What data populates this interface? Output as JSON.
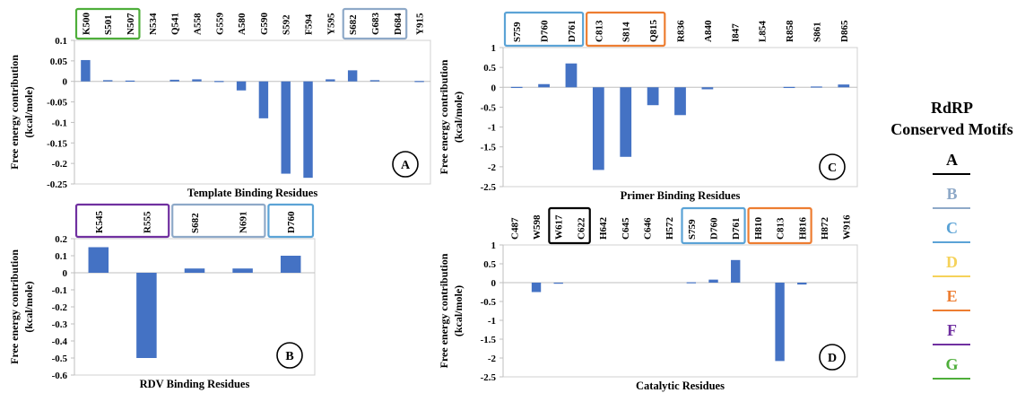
{
  "legend": {
    "title_line1": "RdRP",
    "title_line2": "Conserved Motifs",
    "motifs": [
      {
        "letter": "A",
        "color": "#000000"
      },
      {
        "letter": "B",
        "color": "#8EA9C8"
      },
      {
        "letter": "C",
        "color": "#5BA3D6"
      },
      {
        "letter": "D",
        "color": "#F5D25A"
      },
      {
        "letter": "E",
        "color": "#ED7D31"
      },
      {
        "letter": "F",
        "color": "#7030A0"
      },
      {
        "letter": "G",
        "color": "#4EAE3A"
      }
    ]
  },
  "chart_data": [
    {
      "type": "bar",
      "panel_label": "A",
      "xlabel": "Template Binding Residues",
      "ylabel": "Free energy contribution (kcal/mole)",
      "ylim": [
        -0.25,
        0.1
      ],
      "yticks": [
        "0.1",
        "0.05",
        "0",
        "-0.05",
        "-0.1",
        "-0.15",
        "-0.2",
        "-0.25"
      ],
      "bar_color": "#4472C4",
      "categories": [
        "K500",
        "S501",
        "N507",
        "N534",
        "Q541",
        "A558",
        "G559",
        "A580",
        "G590",
        "S592",
        "F594",
        "Y595",
        "S682",
        "G683",
        "D684",
        "Y915"
      ],
      "values": [
        0.052,
        0.003,
        0.002,
        0.0,
        0.004,
        0.005,
        0.001,
        -0.022,
        -0.09,
        -0.225,
        -0.235,
        0.005,
        0.027,
        0.003,
        0.0,
        0.001
      ],
      "motif_boxes": [
        {
          "motif": "G",
          "from": 0,
          "to": 2
        },
        {
          "motif": "B",
          "from": 12,
          "to": 14
        }
      ]
    },
    {
      "type": "bar",
      "panel_label": "B",
      "xlabel": "RDV Binding Residues",
      "ylabel": "Free energy contribution (kcal/mole)",
      "ylim": [
        -0.6,
        0.2
      ],
      "yticks": [
        "0.2",
        "0.1",
        "0",
        "-0.1",
        "-0.2",
        "-0.3",
        "-0.4",
        "-0.5",
        "-0.6"
      ],
      "bar_color": "#4472C4",
      "categories": [
        "K545",
        "R555",
        "S682",
        "N691",
        "D760"
      ],
      "values": [
        0.15,
        -0.5,
        0.025,
        0.025,
        0.1
      ],
      "motif_boxes": [
        {
          "motif": "F",
          "from": 0,
          "to": 1
        },
        {
          "motif": "B",
          "from": 2,
          "to": 3
        },
        {
          "motif": "C",
          "from": 4,
          "to": 4
        }
      ]
    },
    {
      "type": "bar",
      "panel_label": "C",
      "xlabel": "Primer Binding Residues",
      "ylabel": "Free energy contribution (kcal/mole)",
      "ylim": [
        -2.5,
        1
      ],
      "yticks": [
        "1",
        "0.5",
        "0",
        "-0.5",
        "-1",
        "-1.5",
        "-2",
        "-2.5"
      ],
      "bar_color": "#4472C4",
      "categories": [
        "S759",
        "D760",
        "D761",
        "C813",
        "S814",
        "Q815",
        "R836",
        "A840",
        "I847",
        "L854",
        "R858",
        "S861",
        "D865"
      ],
      "values": [
        0.01,
        0.08,
        0.6,
        -2.08,
        -1.75,
        -0.45,
        -0.7,
        -0.05,
        0.0,
        0.0,
        0.01,
        0.02,
        0.07
      ],
      "motif_boxes": [
        {
          "motif": "C",
          "from": 0,
          "to": 2
        },
        {
          "motif": "E",
          "from": 3,
          "to": 5
        }
      ]
    },
    {
      "type": "bar",
      "panel_label": "D",
      "xlabel": "Catalytic Residues",
      "ylabel": "Free energy contribution (kcal/mole)",
      "ylim": [
        -2.5,
        1
      ],
      "yticks": [
        "1",
        "0.5",
        "0",
        "-0.5",
        "-1",
        "-1.5",
        "-2",
        "-2.5"
      ],
      "bar_color": "#4472C4",
      "categories": [
        "C487",
        "W598",
        "W617",
        "C622",
        "H642",
        "C645",
        "C646",
        "H572",
        "S759",
        "D760",
        "D761",
        "H810",
        "C813",
        "H816",
        "H872",
        "W916"
      ],
      "values": [
        0.0,
        -0.25,
        -0.02,
        0.0,
        0.0,
        0.0,
        0.0,
        0.0,
        0.01,
        0.08,
        0.6,
        0.0,
        -2.08,
        -0.05,
        0.0,
        0.0
      ],
      "motif_boxes": [
        {
          "motif": "A",
          "from": 2,
          "to": 3
        },
        {
          "motif": "C",
          "from": 8,
          "to": 10
        },
        {
          "motif": "E",
          "from": 11,
          "to": 13
        }
      ]
    }
  ]
}
